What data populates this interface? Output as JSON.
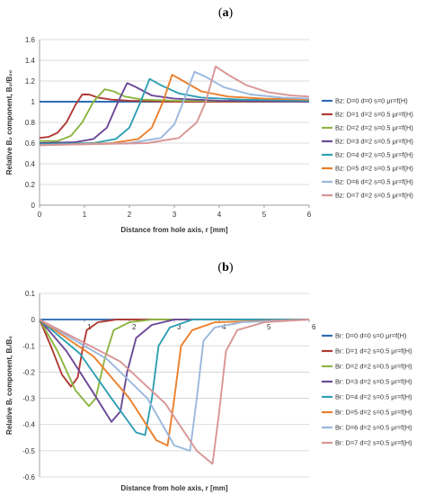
{
  "chart_data": [
    {
      "type": "line",
      "panel_label_open": "(",
      "panel_label_letter": "a",
      "panel_label_close": ")",
      "xlabel": "Distance from hole axis, r [mm]",
      "ylabel": "Relative B₂ component, B₂/B₂₀",
      "xlim": [
        0,
        6
      ],
      "ylim": [
        0,
        1.6
      ],
      "xticks": [
        "0",
        "1",
        "2",
        "3",
        "4",
        "5",
        "6"
      ],
      "yticks": [
        "0",
        "0.2",
        "0.4",
        "0.6",
        "0.8",
        "1",
        "1.2",
        "1.4",
        "1.6"
      ],
      "grid": "horizontal",
      "legend_position": "right",
      "series": [
        {
          "name": "Bz: D=0 d=0 s=0 μr=f(H)",
          "color": "#2e6db4",
          "points": [
            [
              0,
              1
            ],
            [
              6,
              1
            ]
          ]
        },
        {
          "name": "Bz: D=1 d=2 s=0.5 μr=f(H)",
          "color": "#b03a33",
          "points": [
            [
              0,
              0.65
            ],
            [
              0.2,
              0.66
            ],
            [
              0.4,
              0.7
            ],
            [
              0.6,
              0.8
            ],
            [
              0.8,
              0.97
            ],
            [
              0.95,
              1.07
            ],
            [
              1.1,
              1.07
            ],
            [
              1.3,
              1.04
            ],
            [
              1.6,
              1.02
            ],
            [
              2,
              1.01
            ],
            [
              3,
              1
            ],
            [
              6,
              1
            ]
          ]
        },
        {
          "name": "Bz: D=2 d=2 s=0.5 μr=f(H)",
          "color": "#8db542",
          "points": [
            [
              0,
              0.62
            ],
            [
              0.4,
              0.62
            ],
            [
              0.7,
              0.67
            ],
            [
              0.95,
              0.8
            ],
            [
              1.2,
              1.0
            ],
            [
              1.45,
              1.12
            ],
            [
              1.65,
              1.1
            ],
            [
              1.9,
              1.05
            ],
            [
              2.3,
              1.02
            ],
            [
              3,
              1.01
            ],
            [
              6,
              1
            ]
          ]
        },
        {
          "name": "Bz: D=3 d=2 s=0.5 μr=f(H)",
          "color": "#6b4a96",
          "points": [
            [
              0,
              0.6
            ],
            [
              0.8,
              0.61
            ],
            [
              1.2,
              0.64
            ],
            [
              1.5,
              0.75
            ],
            [
              1.75,
              1.0
            ],
            [
              1.95,
              1.18
            ],
            [
              2.15,
              1.14
            ],
            [
              2.5,
              1.06
            ],
            [
              3,
              1.03
            ],
            [
              4,
              1.01
            ],
            [
              6,
              1
            ]
          ]
        },
        {
          "name": "Bz: D=4 d=2 s=0.5 μr=f(H)",
          "color": "#2f9fb3",
          "points": [
            [
              0,
              0.59
            ],
            [
              1.2,
              0.6
            ],
            [
              1.7,
              0.64
            ],
            [
              2.0,
              0.75
            ],
            [
              2.25,
              1.0
            ],
            [
              2.45,
              1.22
            ],
            [
              2.7,
              1.16
            ],
            [
              3.1,
              1.08
            ],
            [
              3.6,
              1.04
            ],
            [
              4.5,
              1.02
            ],
            [
              6,
              1.01
            ]
          ]
        },
        {
          "name": "Bz: D=5 d=2 s=0.5 μr=f(H)",
          "color": "#ec7f2c",
          "points": [
            [
              0,
              0.58
            ],
            [
              1.6,
              0.6
            ],
            [
              2.2,
              0.64
            ],
            [
              2.5,
              0.75
            ],
            [
              2.75,
              1.0
            ],
            [
              2.95,
              1.26
            ],
            [
              3.2,
              1.2
            ],
            [
              3.6,
              1.1
            ],
            [
              4.2,
              1.05
            ],
            [
              5,
              1.03
            ],
            [
              6,
              1.02
            ]
          ]
        },
        {
          "name": "Bz: D=6 d=2 s=0.5 μr=f(H)",
          "color": "#9ab8dd",
          "points": [
            [
              0,
              0.58
            ],
            [
              2.0,
              0.6
            ],
            [
              2.7,
              0.65
            ],
            [
              3.0,
              0.78
            ],
            [
              3.2,
              1.0
            ],
            [
              3.45,
              1.29
            ],
            [
              3.7,
              1.24
            ],
            [
              4.1,
              1.14
            ],
            [
              4.7,
              1.07
            ],
            [
              5.4,
              1.04
            ],
            [
              6,
              1.03
            ]
          ]
        },
        {
          "name": "Bz: D=7 d=2 s=0.5 μr=f(H)",
          "color": "#d99595",
          "points": [
            [
              0,
              0.58
            ],
            [
              2.4,
              0.6
            ],
            [
              3.1,
              0.65
            ],
            [
              3.5,
              0.8
            ],
            [
              3.7,
              1.0
            ],
            [
              3.92,
              1.34
            ],
            [
              4.2,
              1.26
            ],
            [
              4.6,
              1.16
            ],
            [
              5.1,
              1.09
            ],
            [
              5.6,
              1.06
            ],
            [
              6,
              1.05
            ]
          ]
        }
      ]
    },
    {
      "type": "line",
      "panel_label_open": "(",
      "panel_label_letter": "b",
      "panel_label_close": ")",
      "xlabel": "Distance from hole axis, r [mm]",
      "ylabel": "Relative Bᵣ component, Bᵣ/B₀",
      "xlim": [
        0,
        6
      ],
      "ylim": [
        -0.6,
        0.1
      ],
      "xticks": [
        "0",
        "1",
        "2",
        "3",
        "4",
        "5",
        "6"
      ],
      "yticks": [
        "-0.6",
        "-0.5",
        "-0.4",
        "-0.3",
        "-0.2",
        "-0.1",
        "0",
        "0.1"
      ],
      "grid": "horizontal",
      "legend_position": "right",
      "series": [
        {
          "name": "Br: D=0 d=0 s=0 μr=f(H)",
          "color": "#2e6db4",
          "points": [
            [
              0,
              0
            ],
            [
              6,
              0
            ]
          ]
        },
        {
          "name": "Br: D=1 d=2 s=0.5 μr=f(H)",
          "color": "#b03a33",
          "points": [
            [
              0,
              0
            ],
            [
              0.25,
              -0.1
            ],
            [
              0.5,
              -0.21
            ],
            [
              0.7,
              -0.255
            ],
            [
              0.85,
              -0.22
            ],
            [
              0.95,
              -0.12
            ],
            [
              1.05,
              -0.04
            ],
            [
              1.3,
              -0.01
            ],
            [
              1.7,
              0
            ],
            [
              6,
              0
            ]
          ]
        },
        {
          "name": "Br: D=2 d=2 s=0.5 μr=f(H)",
          "color": "#8db542",
          "points": [
            [
              0,
              0
            ],
            [
              0.4,
              -0.12
            ],
            [
              0.8,
              -0.27
            ],
            [
              1.1,
              -0.33
            ],
            [
              1.25,
              -0.3
            ],
            [
              1.45,
              -0.15
            ],
            [
              1.65,
              -0.04
            ],
            [
              2.0,
              -0.01
            ],
            [
              2.5,
              0
            ],
            [
              6,
              0
            ]
          ]
        },
        {
          "name": "Br: D=3 d=2 s=0.5 μr=f(H)",
          "color": "#6b4a96",
          "points": [
            [
              0,
              0
            ],
            [
              0.6,
              -0.12
            ],
            [
              1.2,
              -0.28
            ],
            [
              1.6,
              -0.39
            ],
            [
              1.8,
              -0.35
            ],
            [
              1.95,
              -0.2
            ],
            [
              2.15,
              -0.07
            ],
            [
              2.5,
              -0.02
            ],
            [
              3.0,
              0
            ],
            [
              6,
              0
            ]
          ]
        },
        {
          "name": "Br: D=4 d=2 s=0.5 μr=f(H)",
          "color": "#2f9fb3",
          "points": [
            [
              0,
              0
            ],
            [
              0.9,
              -0.13
            ],
            [
              1.6,
              -0.3
            ],
            [
              2.15,
              -0.43
            ],
            [
              2.35,
              -0.44
            ],
            [
              2.5,
              -0.3
            ],
            [
              2.65,
              -0.1
            ],
            [
              2.9,
              -0.03
            ],
            [
              3.4,
              0
            ],
            [
              6,
              0
            ]
          ]
        },
        {
          "name": "Br: D=5 d=2 s=0.5 μr=f(H)",
          "color": "#ec7f2c",
          "points": [
            [
              0,
              0
            ],
            [
              1.2,
              -0.14
            ],
            [
              2.0,
              -0.3
            ],
            [
              2.6,
              -0.46
            ],
            [
              2.85,
              -0.48
            ],
            [
              3.0,
              -0.3
            ],
            [
              3.15,
              -0.1
            ],
            [
              3.4,
              -0.04
            ],
            [
              3.9,
              -0.01
            ],
            [
              6,
              0
            ]
          ]
        },
        {
          "name": "Br: D=6 d=2 s=0.5 μr=f(H)",
          "color": "#9ab8dd",
          "points": [
            [
              0,
              0
            ],
            [
              1.5,
              -0.15
            ],
            [
              2.4,
              -0.3
            ],
            [
              3.0,
              -0.48
            ],
            [
              3.35,
              -0.5
            ],
            [
              3.5,
              -0.3
            ],
            [
              3.65,
              -0.08
            ],
            [
              3.9,
              -0.03
            ],
            [
              4.5,
              -0.01
            ],
            [
              6,
              0
            ]
          ]
        },
        {
          "name": "Br: D=7 d=2 s=0.5 μr=f(H)",
          "color": "#d99595",
          "points": [
            [
              0,
              0
            ],
            [
              1.8,
              -0.16
            ],
            [
              2.8,
              -0.32
            ],
            [
              3.5,
              -0.5
            ],
            [
              3.85,
              -0.55
            ],
            [
              4.0,
              -0.35
            ],
            [
              4.15,
              -0.12
            ],
            [
              4.4,
              -0.04
            ],
            [
              5.0,
              -0.01
            ],
            [
              6,
              0
            ]
          ]
        }
      ]
    }
  ]
}
